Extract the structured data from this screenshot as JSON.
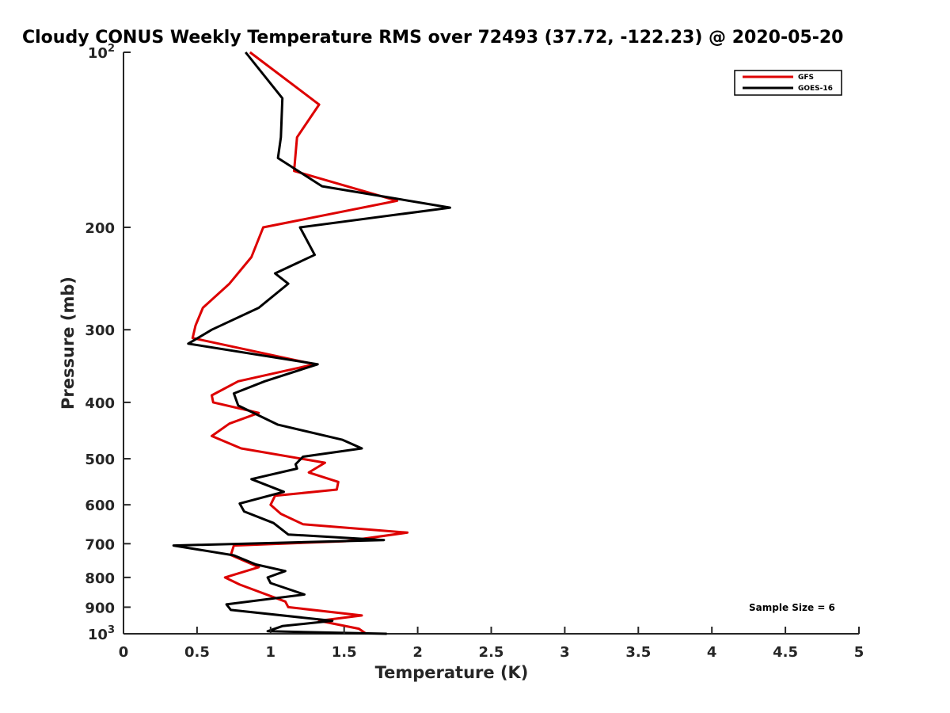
{
  "chart_data": {
    "type": "line",
    "title": "Cloudy CONUS Weekly Temperature RMS over 72493 (37.72, -122.23) @ 2020-05-20",
    "xlabel": "Temperature (K)",
    "ylabel": "Pressure (mb)",
    "xlim": [
      0,
      5
    ],
    "ylim": [
      100,
      1000
    ],
    "y_scale": "log",
    "y_reversed": true,
    "grid": false,
    "legend_position": "top-right",
    "x_ticks": [
      "0",
      "0.5",
      "1",
      "1.5",
      "2",
      "2.5",
      "3",
      "3.5",
      "4",
      "4.5",
      "5"
    ],
    "y_ticks": [
      {
        "value": 100,
        "label": "10",
        "sup": "2"
      },
      {
        "value": 200,
        "label": "200",
        "sup": ""
      },
      {
        "value": 300,
        "label": "300",
        "sup": ""
      },
      {
        "value": 400,
        "label": "400",
        "sup": ""
      },
      {
        "value": 500,
        "label": "500",
        "sup": ""
      },
      {
        "value": 600,
        "label": "600",
        "sup": ""
      },
      {
        "value": 700,
        "label": "700",
        "sup": ""
      },
      {
        "value": 800,
        "label": "800",
        "sup": ""
      },
      {
        "value": 900,
        "label": "900",
        "sup": ""
      },
      {
        "value": 1000,
        "label": "10",
        "sup": "3"
      }
    ],
    "annotation": "Sample Size = 6",
    "series": [
      {
        "name": "GFS",
        "color": "#dd0000",
        "x": [
          0.86,
          1.33,
          1.18,
          1.16,
          1.86,
          0.95,
          0.87,
          0.72,
          0.54,
          0.49,
          0.47,
          1.3,
          0.78,
          0.6,
          0.61,
          0.92,
          0.72,
          0.6,
          0.8,
          1.37,
          1.26,
          1.46,
          1.45,
          1.03,
          1.0,
          1.07,
          1.22,
          1.93,
          1.51,
          0.75,
          0.73,
          0.92,
          0.69,
          0.79,
          1.1,
          1.12,
          1.62,
          1.33,
          1.6,
          1.65
        ],
        "y": [
          100,
          123,
          140,
          160,
          180,
          200,
          225,
          250,
          275,
          295,
          310,
          344,
          368,
          389,
          400,
          417,
          435,
          457,
          480,
          508,
          528,
          548,
          565,
          579,
          600,
          622,
          648,
          670,
          693,
          705,
          732,
          768,
          800,
          823,
          880,
          900,
          930,
          950,
          980,
          1000
        ]
      },
      {
        "name": "GOES-16",
        "color": "#000000",
        "x": [
          0.83,
          1.08,
          1.07,
          1.05,
          1.35,
          2.22,
          1.2,
          1.3,
          1.03,
          1.12,
          0.92,
          0.6,
          0.44,
          1.32,
          0.96,
          0.75,
          0.78,
          1.05,
          1.49,
          1.62,
          1.22,
          1.17,
          1.18,
          0.87,
          1.09,
          0.79,
          0.82,
          1.02,
          1.12,
          1.77,
          0.34,
          0.75,
          0.9,
          1.1,
          0.98,
          1.0,
          1.23,
          0.7,
          0.73,
          1.42,
          1.08,
          0.98,
          1.79
        ],
        "y": [
          100,
          120,
          140,
          152,
          170,
          185,
          200,
          223,
          240,
          250,
          275,
          300,
          317,
          344,
          368,
          386,
          405,
          437,
          464,
          480,
          496,
          511,
          520,
          542,
          570,
          597,
          616,
          645,
          675,
          690,
          705,
          733,
          760,
          780,
          800,
          818,
          856,
          890,
          910,
          950,
          970,
          990,
          1000
        ]
      }
    ]
  }
}
